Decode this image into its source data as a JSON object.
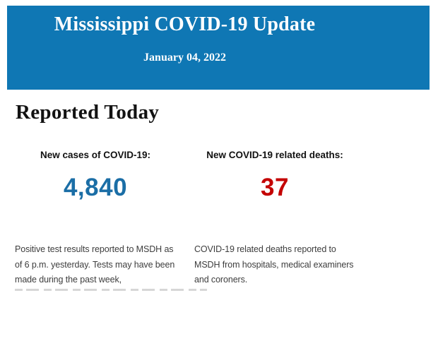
{
  "page": {
    "background": "#ffffff"
  },
  "banner": {
    "title": "Mississippi COVID-19 Update",
    "date": "January 04, 2022",
    "background_color": "#0f77b4",
    "text_color": "#ffffff"
  },
  "section": {
    "heading": "Reported Today"
  },
  "stats": [
    {
      "label": "New cases of COVID-19:",
      "value": "4,840",
      "value_color": "#1b6ea6",
      "description_lines": [
        "Positive test results reported to MSDH as",
        "of 6 p.m. yesterday. Tests may have been",
        "made during the past week,"
      ]
    },
    {
      "label": "New COVID-19 related deaths:",
      "value": "37",
      "value_color": "#c40000",
      "description_lines": [
        "COVID-19 related deaths reported to",
        "MSDH from hospitals, medical examiners",
        "and coroners."
      ]
    }
  ]
}
